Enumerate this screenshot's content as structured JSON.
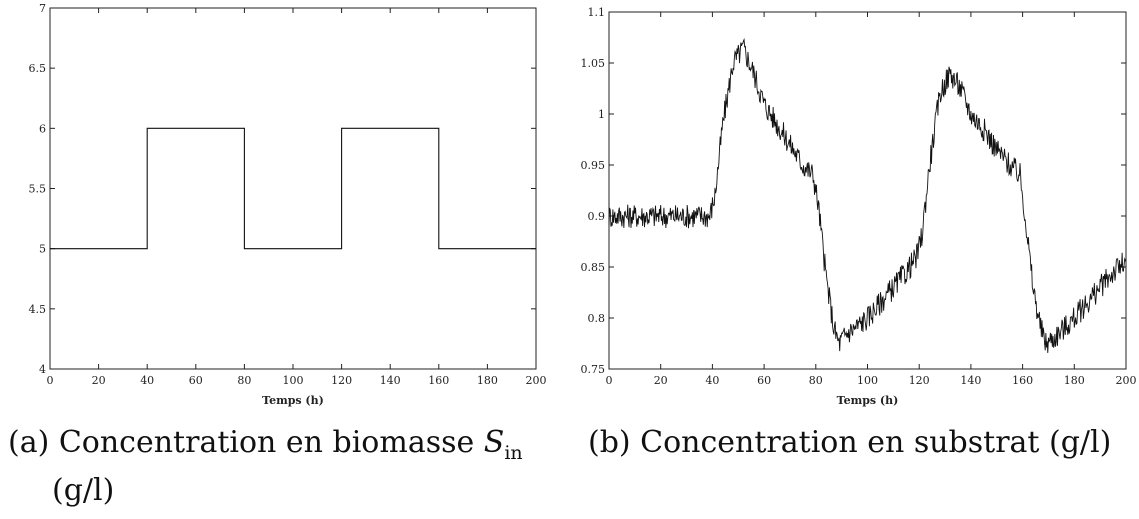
{
  "chart_data": [
    {
      "type": "line",
      "xlabel": "Temps (h)",
      "ylabel": "",
      "xlim": [
        0,
        200
      ],
      "ylim": [
        4,
        7
      ],
      "xticks": [
        0,
        20,
        40,
        60,
        80,
        100,
        120,
        140,
        160,
        180,
        200
      ],
      "yticks": [
        4,
        4.5,
        5,
        5.5,
        6,
        6.5,
        7
      ],
      "ytick_labels": [
        "4",
        "4.5",
        "5",
        "5.5",
        "6",
        "6.5",
        "7"
      ],
      "grid": false,
      "series": [
        {
          "x": [
            0,
            40,
            40,
            80,
            80,
            120,
            120,
            160,
            160,
            200
          ],
          "y": [
            5,
            5,
            6,
            6,
            5,
            5,
            6,
            6,
            5,
            5
          ]
        }
      ],
      "caption_prefix": "(a) Concentration en biomasse",
      "caption_symbol": "S",
      "caption_subscript": "in",
      "caption_unit": "(g/l)",
      "line_color": "#111111"
    },
    {
      "type": "line",
      "xlabel": "Temps (h)",
      "ylabel": "",
      "xlim": [
        0,
        200
      ],
      "ylim": [
        0.75,
        1.1
      ],
      "xticks": [
        0,
        20,
        40,
        60,
        80,
        100,
        120,
        140,
        160,
        180,
        200
      ],
      "yticks": [
        0.75,
        0.8,
        0.85,
        0.9,
        0.95,
        1,
        1.05,
        1.1
      ],
      "ytick_labels": [
        "0.75",
        "0.8",
        "0.85",
        "0.9",
        "0.95",
        "1",
        "1.05",
        "1.1"
      ],
      "grid": false,
      "noise_amplitude": 0.012,
      "series": [
        {
          "x": [
            0,
            39,
            41,
            44,
            48,
            52,
            56,
            60,
            65,
            70,
            75,
            79,
            81,
            84,
            87,
            89,
            92,
            95,
            100,
            105,
            110,
            115,
            119,
            121,
            124,
            128,
            132,
            136,
            140,
            145,
            150,
            155,
            159,
            161,
            164,
            167,
            169,
            172,
            176,
            180,
            185,
            190,
            195,
            200
          ],
          "y": [
            0.9,
            0.9,
            0.92,
            0.99,
            1.05,
            1.065,
            1.04,
            1.01,
            0.99,
            0.97,
            0.95,
            0.94,
            0.91,
            0.84,
            0.79,
            0.775,
            0.785,
            0.79,
            0.8,
            0.815,
            0.83,
            0.845,
            0.86,
            0.88,
            0.95,
            1.02,
            1.04,
            1.025,
            1.0,
            0.985,
            0.965,
            0.95,
            0.94,
            0.9,
            0.83,
            0.79,
            0.775,
            0.78,
            0.79,
            0.8,
            0.815,
            0.83,
            0.845,
            0.855
          ]
        }
      ],
      "caption_text": "(b) Concentration en substrat (g/l)",
      "line_color": "#111111"
    }
  ]
}
